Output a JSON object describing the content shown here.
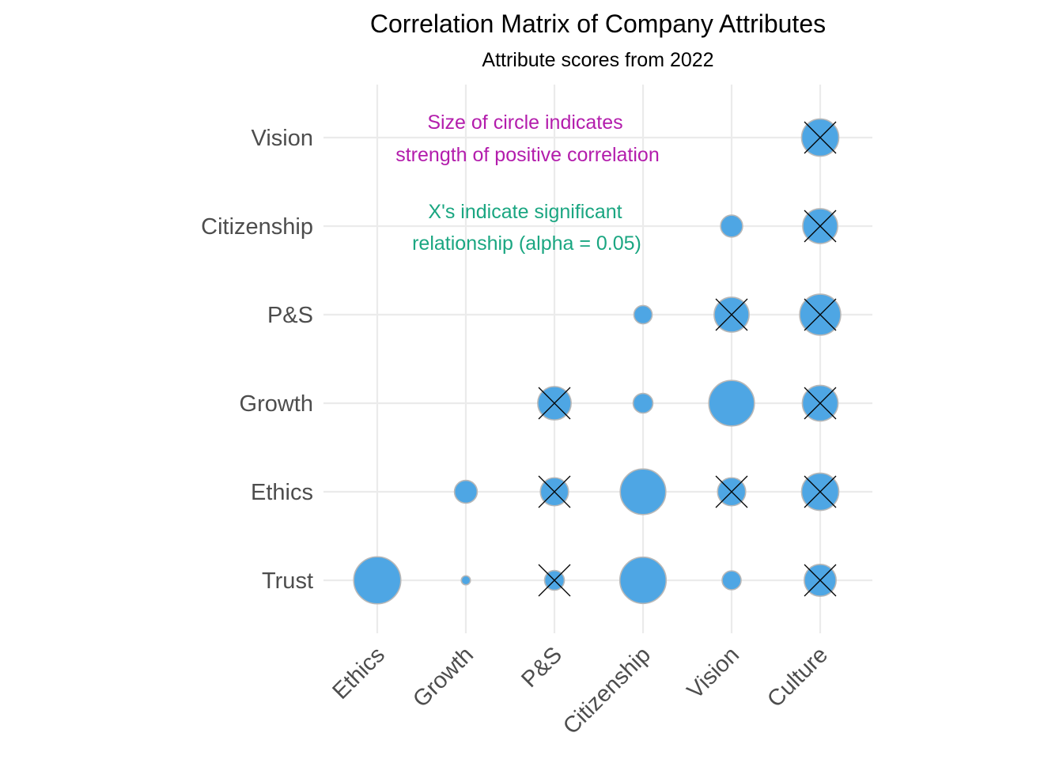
{
  "chart_data": {
    "type": "scatter",
    "title": "Correlation Matrix of Company Attributes",
    "subtitle": "Attribute scores from 2022",
    "x_categories": [
      "Ethics",
      "Growth",
      "P&S",
      "Citizenship",
      "Vision",
      "Culture"
    ],
    "y_categories": [
      "Trust",
      "Ethics",
      "Growth",
      "P&S",
      "Citizenship",
      "Vision"
    ],
    "point_color": "#4ea6e4",
    "point_border_color": "#b8b8b8",
    "cross_color": "#000000",
    "size_encodes": "correlation",
    "points": [
      {
        "x": "Ethics",
        "y": "Trust",
        "correlation": 0.62,
        "significant": false
      },
      {
        "x": "Growth",
        "y": "Trust",
        "correlation": 0.12,
        "significant": false
      },
      {
        "x": "P&S",
        "y": "Trust",
        "correlation": 0.26,
        "significant": true
      },
      {
        "x": "Citizenship",
        "y": "Trust",
        "correlation": 0.61,
        "significant": false
      },
      {
        "x": "Vision",
        "y": "Trust",
        "correlation": 0.25,
        "significant": false
      },
      {
        "x": "Culture",
        "y": "Trust",
        "correlation": 0.42,
        "significant": true
      },
      {
        "x": "Growth",
        "y": "Ethics",
        "correlation": 0.3,
        "significant": false
      },
      {
        "x": "P&S",
        "y": "Ethics",
        "correlation": 0.37,
        "significant": true
      },
      {
        "x": "Citizenship",
        "y": "Ethics",
        "correlation": 0.6,
        "significant": false
      },
      {
        "x": "Vision",
        "y": "Ethics",
        "correlation": 0.37,
        "significant": true
      },
      {
        "x": "Culture",
        "y": "Ethics",
        "correlation": 0.49,
        "significant": true
      },
      {
        "x": "P&S",
        "y": "Growth",
        "correlation": 0.44,
        "significant": true
      },
      {
        "x": "Citizenship",
        "y": "Growth",
        "correlation": 0.26,
        "significant": false
      },
      {
        "x": "Vision",
        "y": "Growth",
        "correlation": 0.6,
        "significant": false
      },
      {
        "x": "Culture",
        "y": "Growth",
        "correlation": 0.47,
        "significant": true
      },
      {
        "x": "Citizenship",
        "y": "P&S",
        "correlation": 0.24,
        "significant": false
      },
      {
        "x": "Vision",
        "y": "P&S",
        "correlation": 0.46,
        "significant": true
      },
      {
        "x": "Culture",
        "y": "P&S",
        "correlation": 0.54,
        "significant": true
      },
      {
        "x": "Vision",
        "y": "Citizenship",
        "correlation": 0.29,
        "significant": false
      },
      {
        "x": "Culture",
        "y": "Citizenship",
        "correlation": 0.46,
        "significant": true
      },
      {
        "x": "Culture",
        "y": "Vision",
        "correlation": 0.49,
        "significant": true
      }
    ],
    "annotations": [
      {
        "lines": [
          "Size of circle indicates",
          "strength of positive correlation"
        ],
        "color": "#b31dac"
      },
      {
        "lines": [
          "X's indicate significant",
          "relationship (alpha = 0.05)"
        ],
        "color": "#1aa681"
      }
    ],
    "grid": true,
    "legend": "none"
  }
}
